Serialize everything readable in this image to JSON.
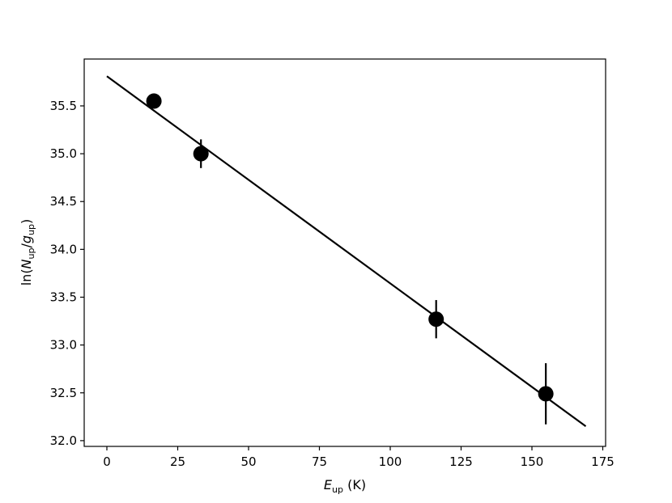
{
  "chart_data": {
    "type": "scatter",
    "title": "",
    "xlabel": {
      "main": "E",
      "sub": "up",
      "unit": " (K)"
    },
    "ylabel": {
      "prefix": "ln(",
      "n": "N",
      "n_sub": "up",
      "slash": "/",
      "g": "g",
      "g_sub": "up",
      "suffix": ")"
    },
    "xlim": [
      -8,
      176
    ],
    "ylim": [
      31.94,
      35.99
    ],
    "xticks": [
      0,
      25,
      50,
      75,
      100,
      125,
      150,
      175
    ],
    "yticks": [
      32.0,
      32.5,
      33.0,
      33.5,
      34.0,
      34.5,
      35.0,
      35.5
    ],
    "points": [
      {
        "x": 16.6,
        "y": 35.55,
        "yerr": 0.08
      },
      {
        "x": 33.2,
        "y": 35.0,
        "yerr": 0.15
      },
      {
        "x": 116.2,
        "y": 33.27,
        "yerr": 0.2
      },
      {
        "x": 154.9,
        "y": 32.49,
        "yerr": 0.32
      }
    ],
    "fit_line": {
      "x": [
        0,
        169
      ],
      "y": [
        35.81,
        32.15
      ]
    },
    "grid": false,
    "legend": "none",
    "colors": {
      "points": "#000000",
      "line": "#000000"
    }
  }
}
